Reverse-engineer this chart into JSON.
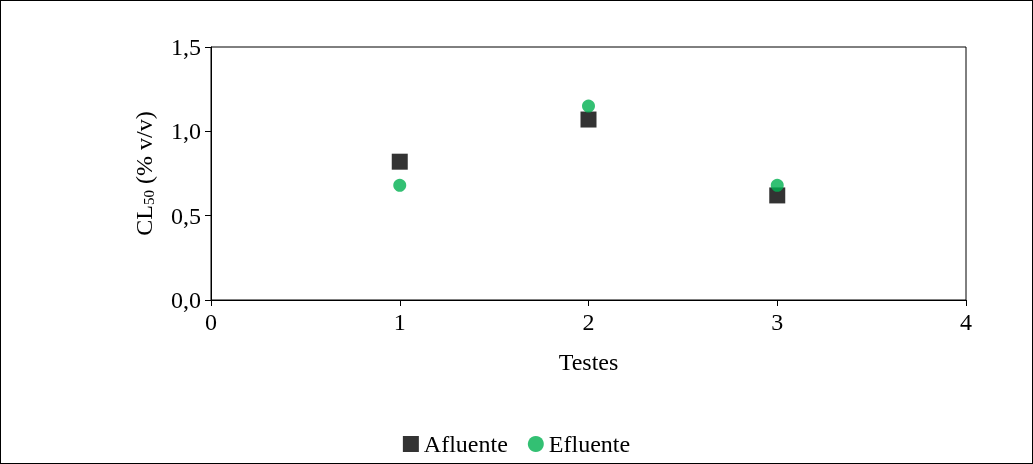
{
  "chart_data": {
    "type": "scatter",
    "xlabel": "Testes",
    "ylabel": "CL$_{50}$ (% v/v)",
    "x": [
      1,
      2,
      3
    ],
    "series": [
      {
        "name": "Afluente",
        "color": "#000000",
        "marker": "square",
        "values": [
          0.82,
          1.07,
          0.62
        ]
      },
      {
        "name": "Efluente",
        "color": "#00b050",
        "marker": "circle",
        "values": [
          0.68,
          1.15,
          0.68
        ]
      }
    ],
    "xlim": [
      0,
      4
    ],
    "xticks": [
      0,
      1,
      2,
      3,
      4
    ],
    "ylim": [
      0,
      1.5
    ],
    "yticks": [
      {
        "value": 0,
        "label": "0,0"
      },
      {
        "value": 0.5,
        "label": "0,5"
      },
      {
        "value": 1,
        "label": "1,0"
      },
      {
        "value": 1.5,
        "label": "1,5"
      }
    ],
    "grid": false,
    "legend": "bottom"
  }
}
